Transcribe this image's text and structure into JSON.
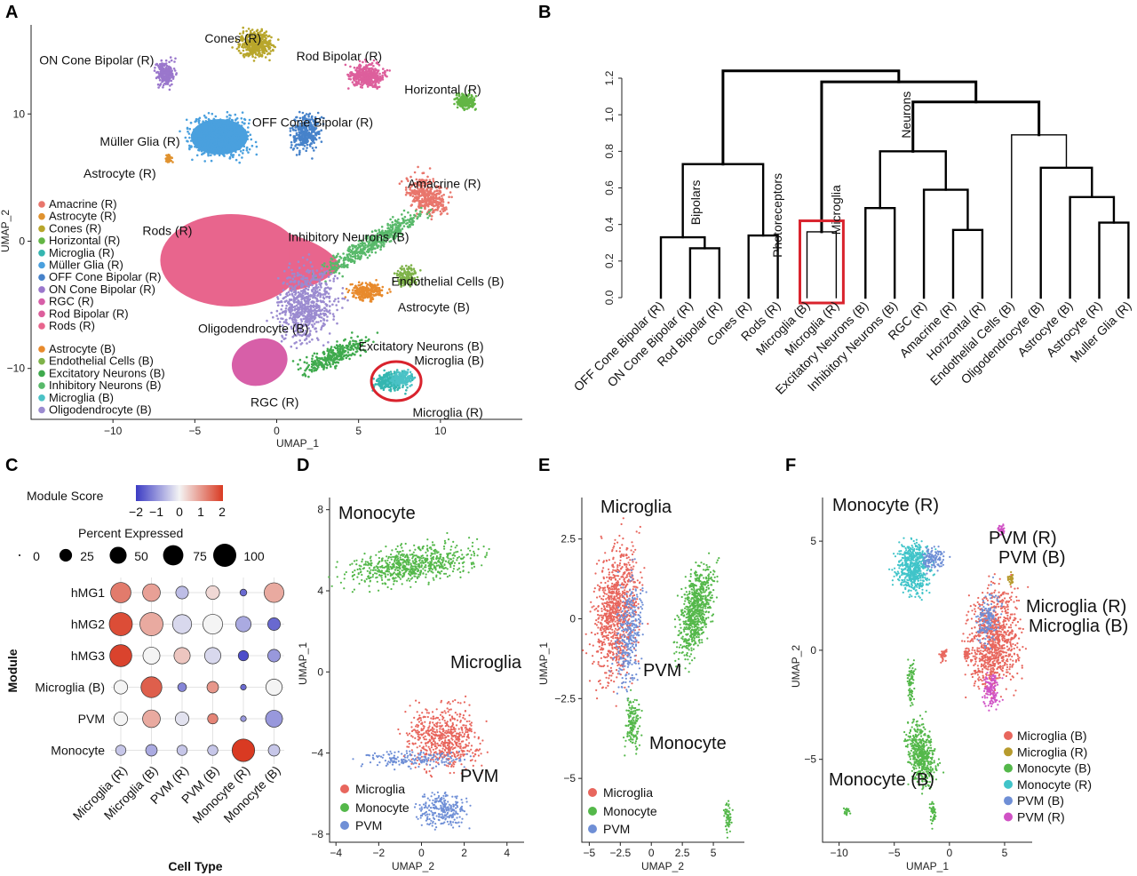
{
  "colors": {
    "amacrine": "#e9766c",
    "astrocyte_r": "#e0922f",
    "cones": "#b8a62b",
    "horizontal": "#63b645",
    "microglia_r": "#35b6b0",
    "muller": "#4aa0de",
    "off_bipolar": "#4682ca",
    "on_bipolar": "#9a77cc",
    "rgc": "#d75fa8",
    "rod_bipolar": "#dd5f9c",
    "rods": "#e8658d",
    "astrocyte_b": "#e88a2c",
    "endothelial": "#7fb34a",
    "excitatory": "#3faa4d",
    "inhibitory": "#58b96a",
    "microglia_b": "#4bc2c6",
    "oligo": "#9b8bd0",
    "red_box": "#d9232d",
    "score_low": "#3b3bc4",
    "score_mid": "#f4f4f4",
    "score_high": "#d93a22",
    "d_microglia": "#e8665d",
    "d_monocyte": "#54b84a",
    "d_pvm": "#6f8fd6",
    "f_pvm_r": "#d052c5",
    "f_microglia_r": "#b79b2e",
    "f_monocyte_r": "#40c4c9"
  },
  "panels": {
    "a": "A",
    "b": "B",
    "c": "C",
    "d": "D",
    "e": "E",
    "f": "F"
  },
  "chart_data": [
    {
      "id": "A",
      "type": "scatter",
      "xlabel": "UMAP_1",
      "ylabel": "UMAP_2",
      "xlim": [
        -15,
        15
      ],
      "ylim": [
        -14,
        17
      ],
      "x_ticks": [
        "−10",
        "−5",
        "0",
        "5",
        "10"
      ],
      "y_ticks": [
        "10",
        "0",
        "−10"
      ],
      "clusters": [
        {
          "name": "Cones (R)",
          "x": -1.3,
          "y": 15.5,
          "color": "cones"
        },
        {
          "name": "ON Cone Bipolar (R)",
          "x": -6.8,
          "y": 13.2,
          "color": "on_bipolar"
        },
        {
          "name": "Rod Bipolar (R)",
          "x": 5.5,
          "y": 13.0,
          "color": "rod_bipolar"
        },
        {
          "name": "Horizontal (R)",
          "x": 11.5,
          "y": 11.0,
          "color": "horizontal"
        },
        {
          "name": "OFF Cone Bipolar (R)",
          "x": 1.8,
          "y": 8.5,
          "color": "off_bipolar"
        },
        {
          "name": "Müller Glia (R)",
          "x": -3.5,
          "y": 8.2,
          "color": "muller"
        },
        {
          "name": "Astrocyte (R)",
          "x": -6.6,
          "y": 6.5,
          "color": "astrocyte_r"
        },
        {
          "name": "Amacrine (R)",
          "x": 9.2,
          "y": 3.5,
          "color": "amacrine"
        },
        {
          "name": "Rods (R)",
          "x": -2.5,
          "y": -1.5,
          "color": "rods"
        },
        {
          "name": "Inhibitory Neurons (B)",
          "x": 6.0,
          "y": 0.0,
          "color": "inhibitory"
        },
        {
          "name": "Astrocyte (B)",
          "x": 5.5,
          "y": -4.0,
          "color": "astrocyte_b"
        },
        {
          "name": "Endothelial Cells (B)",
          "x": 8.0,
          "y": -2.8,
          "color": "endothelial"
        },
        {
          "name": "Oligodendrocyte (B)",
          "x": 1.8,
          "y": -5.0,
          "color": "oligo"
        },
        {
          "name": "Excitatory Neurons (B)",
          "x": 3.5,
          "y": -9.0,
          "color": "excitatory"
        },
        {
          "name": "RGC (R)",
          "x": -0.5,
          "y": -9.5,
          "color": "rgc"
        },
        {
          "name": "Microglia (R)",
          "x": 7.0,
          "y": -11.0,
          "color": "microglia_r"
        },
        {
          "name": "Microglia (B)",
          "x": 7.6,
          "y": -10.8,
          "color": "microglia_b"
        }
      ],
      "labels": [
        {
          "text": "Cones (R)",
          "x": -4.4,
          "y": 15.6
        },
        {
          "text": "ON Cone Bipolar (R)",
          "x": -14.5,
          "y": 13.9
        },
        {
          "text": "Rod Bipolar (R)",
          "x": 1.2,
          "y": 14.2
        },
        {
          "text": "Horizontal (R)",
          "x": 7.8,
          "y": 11.6
        },
        {
          "text": "OFF Cone Bipolar (R)",
          "x": -1.5,
          "y": 9.0
        },
        {
          "text": "Müller Glia (R)",
          "x": -10.8,
          "y": 7.5
        },
        {
          "text": "Astrocyte (R)",
          "x": -11.8,
          "y": 5.0
        },
        {
          "text": "Amacrine (R)",
          "x": 8.0,
          "y": 4.2
        },
        {
          "text": "Rods (R)",
          "x": -8.2,
          "y": 0.5
        },
        {
          "text": "Inhibitory Neurons (B)",
          "x": 0.7,
          "y": 0.0
        },
        {
          "text": "Endothelial Cells (B)",
          "x": 7.0,
          "y": -3.5
        },
        {
          "text": "Astrocyte (B)",
          "x": 7.4,
          "y": -5.5
        },
        {
          "text": "Oligodendrocyte (B)",
          "x": -4.8,
          "y": -7.2
        },
        {
          "text": "Excitatory Neurons (B)",
          "x": 5.0,
          "y": -8.6
        },
        {
          "text": "Microglia (B)",
          "x": 8.4,
          "y": -9.7
        },
        {
          "text": "RGC (R)",
          "x": -1.6,
          "y": -13.0
        },
        {
          "text": "Microglia (R)",
          "x": 8.3,
          "y": -13.8
        }
      ],
      "legend_r": [
        {
          "label": "Amacrine (R)",
          "color": "amacrine"
        },
        {
          "label": "Astrocyte (R)",
          "color": "astrocyte_r"
        },
        {
          "label": "Cones (R)",
          "color": "cones"
        },
        {
          "label": "Horizontal (R)",
          "color": "horizontal"
        },
        {
          "label": "Microglia (R)",
          "color": "microglia_r"
        },
        {
          "label": "Müller Glia (R)",
          "color": "muller"
        },
        {
          "label": "OFF Cone Bipolar (R)",
          "color": "off_bipolar"
        },
        {
          "label": "ON Cone Bipolar (R)",
          "color": "on_bipolar"
        },
        {
          "label": "RGC (R)",
          "color": "rgc"
        },
        {
          "label": "Rod Bipolar (R)",
          "color": "rod_bipolar"
        },
        {
          "label": "Rods (R)",
          "color": "rods"
        }
      ],
      "legend_b": [
        {
          "label": "Astrocyte (B)",
          "color": "astrocyte_b"
        },
        {
          "label": "Endothelial Cells (B)",
          "color": "endothelial"
        },
        {
          "label": "Excitatory Neurons (B)",
          "color": "excitatory"
        },
        {
          "label": "Inhibitory Neurons (B)",
          "color": "inhibitory"
        },
        {
          "label": "Microglia (B)",
          "color": "microglia_b"
        },
        {
          "label": "Oligodendrocyte (B)",
          "color": "oligo"
        }
      ]
    },
    {
      "id": "B",
      "type": "dendrogram",
      "ylim": [
        0,
        1.2
      ],
      "y_ticks": [
        "0.0",
        "0.2",
        "0.4",
        "0.6",
        "0.8",
        "1.0",
        "1.2"
      ],
      "leaves": [
        "OFF Cone Bipolar (R)",
        "ON Cone Bipolar (R)",
        "Rod Bipolar (R)",
        "Cones (R)",
        "Rods (R)",
        "Microglia (B)",
        "Microglia (R)",
        "Excitatory Neurons (B)",
        "Inhibitory Neurons (B)",
        "RGC (R)",
        "Amacrine (R)",
        "Horizontal (R)",
        "Endothelial Cells (B)",
        "Oligodendrocyte (B)",
        "Astrocyte (B)",
        "Astrocyte (R)",
        "Muller Glia (R)"
      ],
      "merges": [
        {
          "id": "m1",
          "left": 1,
          "right": 2,
          "height": 0.27
        },
        {
          "id": "m2",
          "left": 0,
          "right": "m1",
          "height": 0.33
        },
        {
          "id": "m3",
          "left": 3,
          "right": 4,
          "height": 0.34
        },
        {
          "id": "m4",
          "left": "m2",
          "right": "m3",
          "height": 0.73
        },
        {
          "id": "m5",
          "left": 5,
          "right": 6,
          "height": 0.36
        },
        {
          "id": "m6",
          "left": 7,
          "right": 8,
          "height": 0.49
        },
        {
          "id": "m7",
          "left": 10,
          "right": 11,
          "height": 0.37
        },
        {
          "id": "m8",
          "left": 9,
          "right": "m7",
          "height": 0.59
        },
        {
          "id": "m9",
          "left": "m6",
          "right": "m8",
          "height": 0.8
        },
        {
          "id": "m10",
          "left": 15,
          "right": 16,
          "height": 0.41
        },
        {
          "id": "m11",
          "left": 14,
          "right": "m10",
          "height": 0.55
        },
        {
          "id": "m12",
          "left": 13,
          "right": "m11",
          "height": 0.71
        },
        {
          "id": "m13",
          "left": 12,
          "right": "m12",
          "height": 0.89
        },
        {
          "id": "m14",
          "left": "m9",
          "right": "m13",
          "height": 1.07
        },
        {
          "id": "m15",
          "left": "m5",
          "right": "m14",
          "height": 1.18
        },
        {
          "id": "m16",
          "left": "m4",
          "right": "m15",
          "height": 1.24
        }
      ],
      "annotations": [
        "Bipolars",
        "Photoreceptors",
        "Microglia",
        "Neurons"
      ]
    },
    {
      "id": "C",
      "type": "dotplot",
      "xlabel": "Cell Type",
      "ylabel": "Module",
      "columns": [
        "Microglia (R)",
        "Microglia (B)",
        "PVM (R)",
        "PVM (B)",
        "Monocyte (R)",
        "Monocyte (B)"
      ],
      "rows": [
        "hMG1",
        "hMG2",
        "hMG3",
        "Microglia (B)",
        "PVM",
        "Monocyte"
      ],
      "score_legend": {
        "title": "Module Score",
        "ticks": [
          "−2",
          "−1",
          "0",
          "1",
          "2"
        ]
      },
      "size_legend": {
        "title": "Percent Expressed",
        "ticks": [
          "0",
          "25",
          "50",
          "75",
          "100"
        ]
      },
      "pct": [
        [
          75,
          55,
          25,
          30,
          5,
          70
        ],
        [
          100,
          100,
          65,
          70,
          40,
          25
        ],
        [
          90,
          50,
          45,
          45,
          15,
          25
        ],
        [
          30,
          80,
          10,
          20,
          3,
          45
        ],
        [
          30,
          55,
          30,
          15,
          3,
          50
        ],
        [
          15,
          20,
          15,
          15,
          95,
          20
        ]
      ],
      "score": [
        [
          1.3,
          0.9,
          -0.6,
          0.3,
          -1.5,
          0.8
        ],
        [
          1.8,
          0.8,
          -0.3,
          0.0,
          -0.8,
          -1.5
        ],
        [
          1.9,
          0.0,
          0.5,
          -0.3,
          -1.8,
          -1.0
        ],
        [
          0.0,
          1.6,
          -1.2,
          1.0,
          -1.5,
          0.0
        ],
        [
          0.0,
          0.8,
          -0.2,
          1.2,
          -1.0,
          -1.0
        ],
        [
          -0.5,
          -0.8,
          -0.5,
          -0.5,
          2.0,
          -0.5
        ]
      ]
    },
    {
      "id": "D",
      "type": "scatter",
      "xlabel": "UMAP_2",
      "ylabel": "UMAP_1",
      "xlim": [
        -4.3,
        4.8
      ],
      "ylim": [
        -8.4,
        8.6
      ],
      "x_ticks": [
        "−4",
        "−2",
        "0",
        "2",
        "4"
      ],
      "y_ticks": [
        "8",
        "4",
        "0",
        "−4",
        "−8"
      ],
      "labels": [
        "Monocyte",
        "Microglia",
        "PVM"
      ],
      "legend": [
        {
          "label": "Microglia",
          "color": "d_microglia"
        },
        {
          "label": "Monocyte",
          "color": "d_monocyte"
        },
        {
          "label": "PVM",
          "color": "d_pvm"
        }
      ]
    },
    {
      "id": "E",
      "type": "scatter",
      "xlabel": "UMAP_2",
      "ylabel": "UMAP_1",
      "xlim": [
        -5.6,
        7.5
      ],
      "ylim": [
        -7.0,
        3.8
      ],
      "x_ticks": [
        "−5",
        "−2.5",
        "0",
        "2.5",
        "5"
      ],
      "y_ticks": [
        "2.5",
        "0",
        "−2.5",
        "−5"
      ],
      "labels": [
        "Microglia",
        "PVM",
        "Monocyte"
      ],
      "legend": [
        {
          "label": "Microglia",
          "color": "d_microglia"
        },
        {
          "label": "Monocyte",
          "color": "d_monocyte"
        },
        {
          "label": "PVM",
          "color": "d_pvm"
        }
      ]
    },
    {
      "id": "F",
      "type": "scatter",
      "xlabel": "UMAP_1",
      "ylabel": "UMAP_2",
      "xlim": [
        -11.5,
        7.5
      ],
      "ylim": [
        -8.8,
        7.0
      ],
      "x_ticks": [
        "−10",
        "−5",
        "0",
        "5"
      ],
      "y_ticks": [
        "5",
        "0",
        "−5"
      ],
      "labels": [
        "Monocyte (R)",
        "PVM (R)",
        "PVM (B)",
        "Microglia (R)",
        "Microglia (B)",
        "Monocyte (B)"
      ],
      "legend": [
        {
          "label": "Microglia (B)",
          "color": "d_microglia"
        },
        {
          "label": "Microglia (R)",
          "color": "f_microglia_r"
        },
        {
          "label": "Monocyte (B)",
          "color": "d_monocyte"
        },
        {
          "label": "Monocyte (R)",
          "color": "f_monocyte_r"
        },
        {
          "label": "PVM (B)",
          "color": "d_pvm"
        },
        {
          "label": "PVM (R)",
          "color": "f_pvm_r"
        }
      ]
    }
  ]
}
